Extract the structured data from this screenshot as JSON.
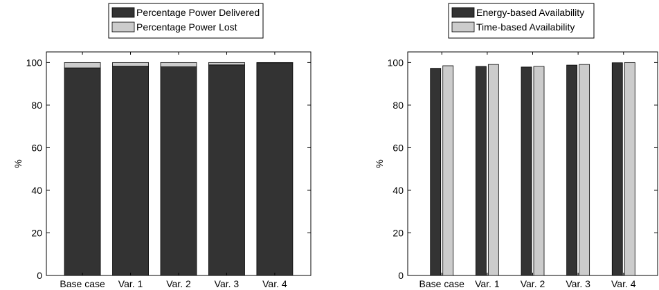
{
  "colors": {
    "dark": "#333333",
    "light": "#cccccc",
    "axis": "#000000"
  },
  "chart_data": [
    {
      "type": "bar",
      "stacked": true,
      "categories": [
        "Base case",
        "Var. 1",
        "Var. 2",
        "Var. 3",
        "Var. 4"
      ],
      "series": [
        {
          "name": "Percentage Power Delivered",
          "values": [
            97.5,
            98.3,
            98.0,
            98.9,
            99.9
          ]
        },
        {
          "name": "Percentage Power Lost",
          "values": [
            2.5,
            1.7,
            2.0,
            1.1,
            0.1
          ]
        }
      ],
      "ylabel": "%",
      "ylim": [
        0,
        105
      ],
      "yticks": [
        0,
        20,
        40,
        60,
        80,
        100
      ],
      "grid": false,
      "legend": "top"
    },
    {
      "type": "bar",
      "stacked": false,
      "categories": [
        "Base case",
        "Var. 1",
        "Var. 2",
        "Var. 3",
        "Var. 4"
      ],
      "series": [
        {
          "name": "Energy-based Availability",
          "values": [
            97.3,
            98.2,
            97.9,
            98.8,
            99.9
          ]
        },
        {
          "name": "Time-based Availability",
          "values": [
            98.5,
            99.1,
            98.2,
            99.1,
            100.0
          ]
        }
      ],
      "ylabel": "%",
      "ylim": [
        0,
        105
      ],
      "yticks": [
        0,
        20,
        40,
        60,
        80,
        100
      ],
      "grid": false,
      "legend": "top"
    }
  ]
}
